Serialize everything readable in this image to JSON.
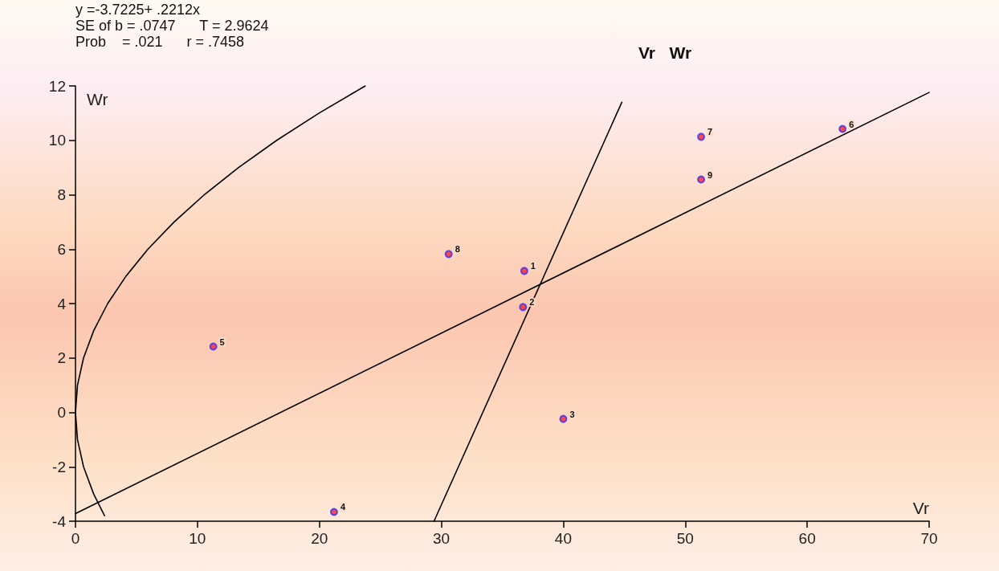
{
  "chart_data": {
    "type": "scatter",
    "title": "Vr   Wr",
    "xlabel": "Vr",
    "ylabel": "Wr",
    "annotations": [
      "y =-3.7225+ .2212x",
      "SE of b = .0747      T = 2.9624",
      "Prob    = .021      r = .7458",
      {
        "text": "1",
        "x": 36.8,
        "y": 5.2
      },
      {
        "text": "2",
        "x": 36.7,
        "y": 3.87
      },
      {
        "text": "3",
        "x": 40.0,
        "y": -0.24
      },
      {
        "text": "4",
        "x": 21.2,
        "y": -3.66
      },
      {
        "text": "5",
        "x": 11.3,
        "y": 2.42
      },
      {
        "text": "6",
        "x": 62.9,
        "y": 10.42
      },
      {
        "text": "7",
        "x": 51.3,
        "y": 10.13
      },
      {
        "text": "8",
        "x": 30.6,
        "y": 5.82
      },
      {
        "text": "9",
        "x": 51.3,
        "y": 8.56
      }
    ],
    "xlim": [
      0,
      70
    ],
    "xticks": [
      0,
      10,
      20,
      30,
      40,
      50,
      60,
      70
    ],
    "ylim": [
      -4,
      12
    ],
    "yticks": [
      -4,
      -2,
      0,
      2,
      4,
      6,
      8,
      10,
      12
    ],
    "grid": false,
    "series": [
      {
        "marker": "circle",
        "color": "#ff2020",
        "x": [
          36.8,
          36.7,
          40.0,
          21.2,
          11.3,
          62.9,
          51.3,
          30.6,
          51.3
        ],
        "values": [
          5.2,
          3.87,
          -0.24,
          -3.66,
          2.42,
          10.42,
          10.13,
          5.82,
          8.56
        ]
      },
      {
        "type": "line",
        "marker": "none",
        "line_style": "solid",
        "color": "#000000",
        "x": [
          0,
          70
        ],
        "values": [
          -3.72,
          11.76
        ]
      },
      {
        "type": "line",
        "marker": "none",
        "line_style": "solid",
        "color": "#000000",
        "x": [
          29.4,
          44.8
        ],
        "values": [
          -4,
          11.4
        ]
      },
      {
        "type": "line",
        "marker": "none",
        "line_style": "solid",
        "color": "#000000",
        "x": [
          2.38,
          1.49,
          0.66,
          0.165,
          0,
          0.165,
          0.66,
          1.49,
          2.64,
          4.13,
          5.94,
          8.09,
          10.56,
          13.37,
          16.5,
          19.97,
          23.76
        ],
        "values": [
          -3.8,
          -3,
          -2,
          -1,
          0,
          1,
          2,
          3,
          4,
          5,
          6,
          7,
          8,
          9,
          10,
          11,
          12
        ]
      }
    ]
  }
}
